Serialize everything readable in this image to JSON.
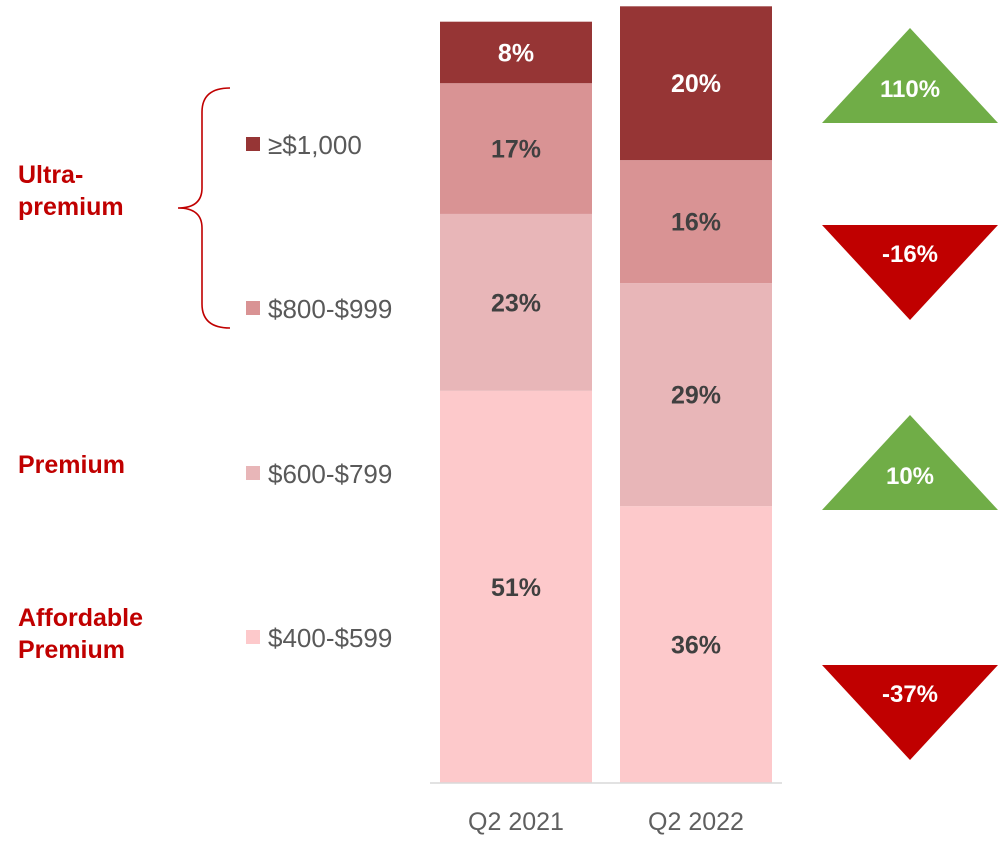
{
  "chart_data": {
    "type": "bar",
    "stacked": true,
    "normalized_percent": true,
    "categories": [
      "Q2 2021",
      "Q2 2022"
    ],
    "series": [
      {
        "name": "$400-$599",
        "color": "#fdc9cb",
        "values": [
          51,
          36
        ],
        "labels": [
          "51%",
          "36%"
        ]
      },
      {
        "name": "$600-$799",
        "color": "#e8b6b8",
        "values": [
          23,
          29
        ],
        "labels": [
          "23%",
          "29%"
        ]
      },
      {
        "name": "$800-$999",
        "color": "#d99394",
        "values": [
          17,
          16
        ],
        "labels": [
          "17%",
          "16%"
        ]
      },
      {
        "name": "≥$1,000",
        "color": "#963535",
        "values": [
          8,
          20
        ],
        "labels": [
          "8%",
          "20%"
        ]
      }
    ],
    "legend_order": [
      "≥$1,000",
      "$800-$999",
      "$600-$799",
      "$400-$599"
    ],
    "groups": [
      {
        "lines": [
          "Ultra-",
          "premium"
        ],
        "brace": true
      },
      {
        "lines": [
          "Premium"
        ]
      },
      {
        "lines": [
          "Affordable",
          "Premium"
        ]
      }
    ],
    "changes": [
      {
        "label": "110%",
        "direction": "up",
        "color": "#70ad47"
      },
      {
        "label": "-16%",
        "direction": "down",
        "color": "#c00000"
      },
      {
        "label": "10%",
        "direction": "up",
        "color": "#70ad47"
      },
      {
        "label": "-37%",
        "direction": "down",
        "color": "#c00000"
      }
    ],
    "ylim": [
      0,
      100
    ],
    "label_colors": {
      "dark_segment": "#ffffff",
      "light_segment": "#404040"
    },
    "group_text_color": "#c00000"
  }
}
